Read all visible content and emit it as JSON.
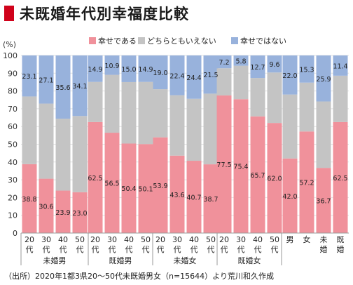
{
  "title": "未既婚年代別幸福度比較",
  "source_note": "（出所）2020年1都3県20～50代未既婚男女（n=15644）より荒川和久作成",
  "colors": {
    "happy": "#f0919b",
    "neutral": "#c4c4c4",
    "unhappy": "#98b2dc",
    "title_mark": "#d0021b"
  },
  "chart_data": {
    "type": "bar",
    "stacked": true,
    "ylabel": "(%)",
    "ylim": [
      0,
      100
    ],
    "yticks": [
      0,
      10,
      20,
      30,
      40,
      50,
      60,
      70,
      80,
      90,
      100
    ],
    "legend_position": "top",
    "categories": [
      {
        "label": [
          "20",
          "代"
        ],
        "group": "未婚男"
      },
      {
        "label": [
          "30",
          "代"
        ],
        "group": "未婚男"
      },
      {
        "label": [
          "40",
          "代"
        ],
        "group": "未婚男"
      },
      {
        "label": [
          "50",
          "代"
        ],
        "group": "未婚男"
      },
      {
        "label": [
          "20",
          "代"
        ],
        "group": "既婚男"
      },
      {
        "label": [
          "30",
          "代"
        ],
        "group": "既婚男"
      },
      {
        "label": [
          "40",
          "代"
        ],
        "group": "既婚男"
      },
      {
        "label": [
          "50",
          "代"
        ],
        "group": "既婚男"
      },
      {
        "label": [
          "20",
          "代"
        ],
        "group": "未婚女"
      },
      {
        "label": [
          "30",
          "代"
        ],
        "group": "未婚女"
      },
      {
        "label": [
          "40",
          "代"
        ],
        "group": "未婚女"
      },
      {
        "label": [
          "50",
          "代"
        ],
        "group": "未婚女"
      },
      {
        "label": [
          "20",
          "代"
        ],
        "group": "既婚女"
      },
      {
        "label": [
          "30",
          "代"
        ],
        "group": "既婚女"
      },
      {
        "label": [
          "40",
          "代"
        ],
        "group": "既婚女"
      },
      {
        "label": [
          "50",
          "代"
        ],
        "group": "既婚女"
      },
      {
        "label": [
          "男"
        ],
        "group": ""
      },
      {
        "label": [
          "女"
        ],
        "group": ""
      },
      {
        "label": [
          "未",
          "婚"
        ],
        "group": ""
      },
      {
        "label": [
          "既",
          "婚"
        ],
        "group": ""
      }
    ],
    "groups": [
      "未婚男",
      "既婚男",
      "未婚女",
      "既婚女"
    ],
    "series": [
      {
        "name": "幸せである",
        "values": [
          38.8,
          30.6,
          23.9,
          23.0,
          62.5,
          56.5,
          50.4,
          50.1,
          53.9,
          43.6,
          40.7,
          38.7,
          77.5,
          75.4,
          65.7,
          62.0,
          42.0,
          57.2,
          36.7,
          62.5
        ]
      },
      {
        "name": "どちらともいえない",
        "values": [
          38.1,
          42.3,
          40.5,
          42.9,
          22.6,
          32.6,
          34.6,
          35.0,
          27.1,
          34.0,
          34.9,
          39.8,
          15.3,
          18.8,
          21.6,
          28.4,
          36.0,
          27.5,
          37.4,
          26.1
        ]
      },
      {
        "name": "幸せではない",
        "values": [
          23.1,
          27.1,
          35.6,
          34.1,
          14.9,
          10.9,
          15.0,
          14.9,
          19.0,
          22.4,
          24.4,
          21.5,
          7.2,
          5.8,
          12.7,
          9.6,
          22.0,
          15.3,
          25.9,
          11.4
        ]
      }
    ],
    "labels_shown": {
      "happy": [
        38.8,
        30.6,
        23.9,
        23.0,
        62.5,
        56.5,
        50.4,
        50.1,
        53.9,
        43.6,
        40.7,
        38.7,
        77.5,
        75.4,
        65.7,
        62.0,
        42.0,
        57.2,
        36.7,
        62.5
      ],
      "unhappy": [
        23.1,
        27.1,
        35.6,
        34.1,
        14.9,
        10.9,
        15.0,
        14.9,
        19.0,
        22.4,
        24.4,
        21.5,
        7.2,
        5.8,
        12.7,
        9.6,
        22.0,
        15.3,
        25.9,
        11.4
      ]
    }
  }
}
